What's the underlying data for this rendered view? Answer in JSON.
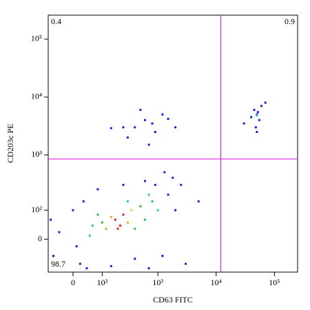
{
  "chart_data": {
    "type": "scatter",
    "scale": "biexponential",
    "xlabel": "CD63 FITC",
    "ylabel": "CD203c PE",
    "xlim": [
      -80,
      250000
    ],
    "ylim": [
      -120,
      260000
    ],
    "xticks": [
      0,
      {
        "value": 100,
        "label": "10²"
      },
      {
        "value": 1000,
        "label": "10³"
      },
      {
        "value": 10000,
        "label": "10⁴"
      },
      {
        "value": 100000,
        "label": "10⁵"
      }
    ],
    "yticks": [
      0,
      {
        "value": 100,
        "label": "10²"
      },
      {
        "value": 1000,
        "label": "10³"
      },
      {
        "value": 10000,
        "label": "10⁴"
      },
      {
        "value": 100000,
        "label": "10⁵"
      }
    ],
    "gates": {
      "x": 12000,
      "y": 850,
      "color": "#e020e0"
    },
    "quadrants": [
      {
        "corner": "top-left",
        "value": 0.4
      },
      {
        "corner": "top-right",
        "value": 0.9
      },
      {
        "corner": "bottom-left",
        "value": 98.7
      }
    ],
    "x": [
      180,
      220,
      250,
      200,
      150,
      300,
      350,
      120,
      100,
      500,
      800,
      400,
      80,
      600,
      60,
      1000,
      700,
      300,
      50,
      -40,
      -60,
      0,
      20,
      30,
      900,
      1500,
      1200,
      2000,
      150,
      400,
      80,
      250,
      600,
      1800,
      2500,
      5000,
      -70,
      10,
      40,
      3000,
      700,
      1300,
      50000,
      45000,
      55000,
      48000,
      60000,
      40000,
      52000,
      30000,
      70000,
      50000,
      50000,
      400,
      600,
      900,
      1200,
      800,
      300,
      1500,
      2000,
      700,
      500,
      250,
      150
    ],
    "values": [
      60,
      40,
      80,
      30,
      70,
      50,
      100,
      30,
      50,
      120,
      150,
      30,
      80,
      60,
      40,
      100,
      200,
      150,
      10,
      20,
      -50,
      100,
      -80,
      150,
      300,
      200,
      -50,
      100,
      -90,
      -60,
      250,
      300,
      350,
      400,
      300,
      150,
      60,
      -20,
      -100,
      -80,
      -100,
      500,
      5000,
      6000,
      4000,
      3000,
      7000,
      4500,
      5500,
      3500,
      8000,
      2500,
      4800,
      3000,
      4000,
      2500,
      5000,
      3500,
      2000,
      4200,
      3000,
      1500,
      6000,
      3000,
      2900
    ],
    "colors": [
      "#e8201c",
      "#e8201c",
      "#e8201c",
      "#e8201c",
      "#f0a020",
      "#f0a020",
      "#d8e020",
      "#f0a020",
      "#30c040",
      "#30c040",
      "#30c040",
      "#30c040",
      "#30c040",
      "#30c040",
      "#20c0d0",
      "#20c0d0",
      "#20c0d0",
      "#20c0d0",
      "#20c0d0",
      "#1020e0",
      "#1020e0",
      "#1020e0",
      "#1020e0",
      "#1020e0",
      "#1020e0",
      "#1020e0",
      "#1020e0",
      "#1020e0",
      "#1020e0",
      "#1020e0",
      "#1020e0",
      "#1020e0",
      "#1020e0",
      "#1020e0",
      "#1020e0",
      "#1020e0",
      "#1020e0",
      "#1020e0",
      "#1020e0",
      "#1020e0",
      "#1020e0",
      "#1020e0",
      "#1020e0",
      "#1020e0",
      "#1020e0",
      "#1020e0",
      "#1020e0",
      "#1020e0",
      "#1020e0",
      "#1020e0",
      "#1020e0",
      "#1020e0",
      "#20c0d0",
      "#1020e0",
      "#1020e0",
      "#1020e0",
      "#1020e0",
      "#1020e0",
      "#1020e0",
      "#1020e0",
      "#1020e0",
      "#1020e0",
      "#1020e0",
      "#1020e0",
      "#1020e0"
    ]
  }
}
